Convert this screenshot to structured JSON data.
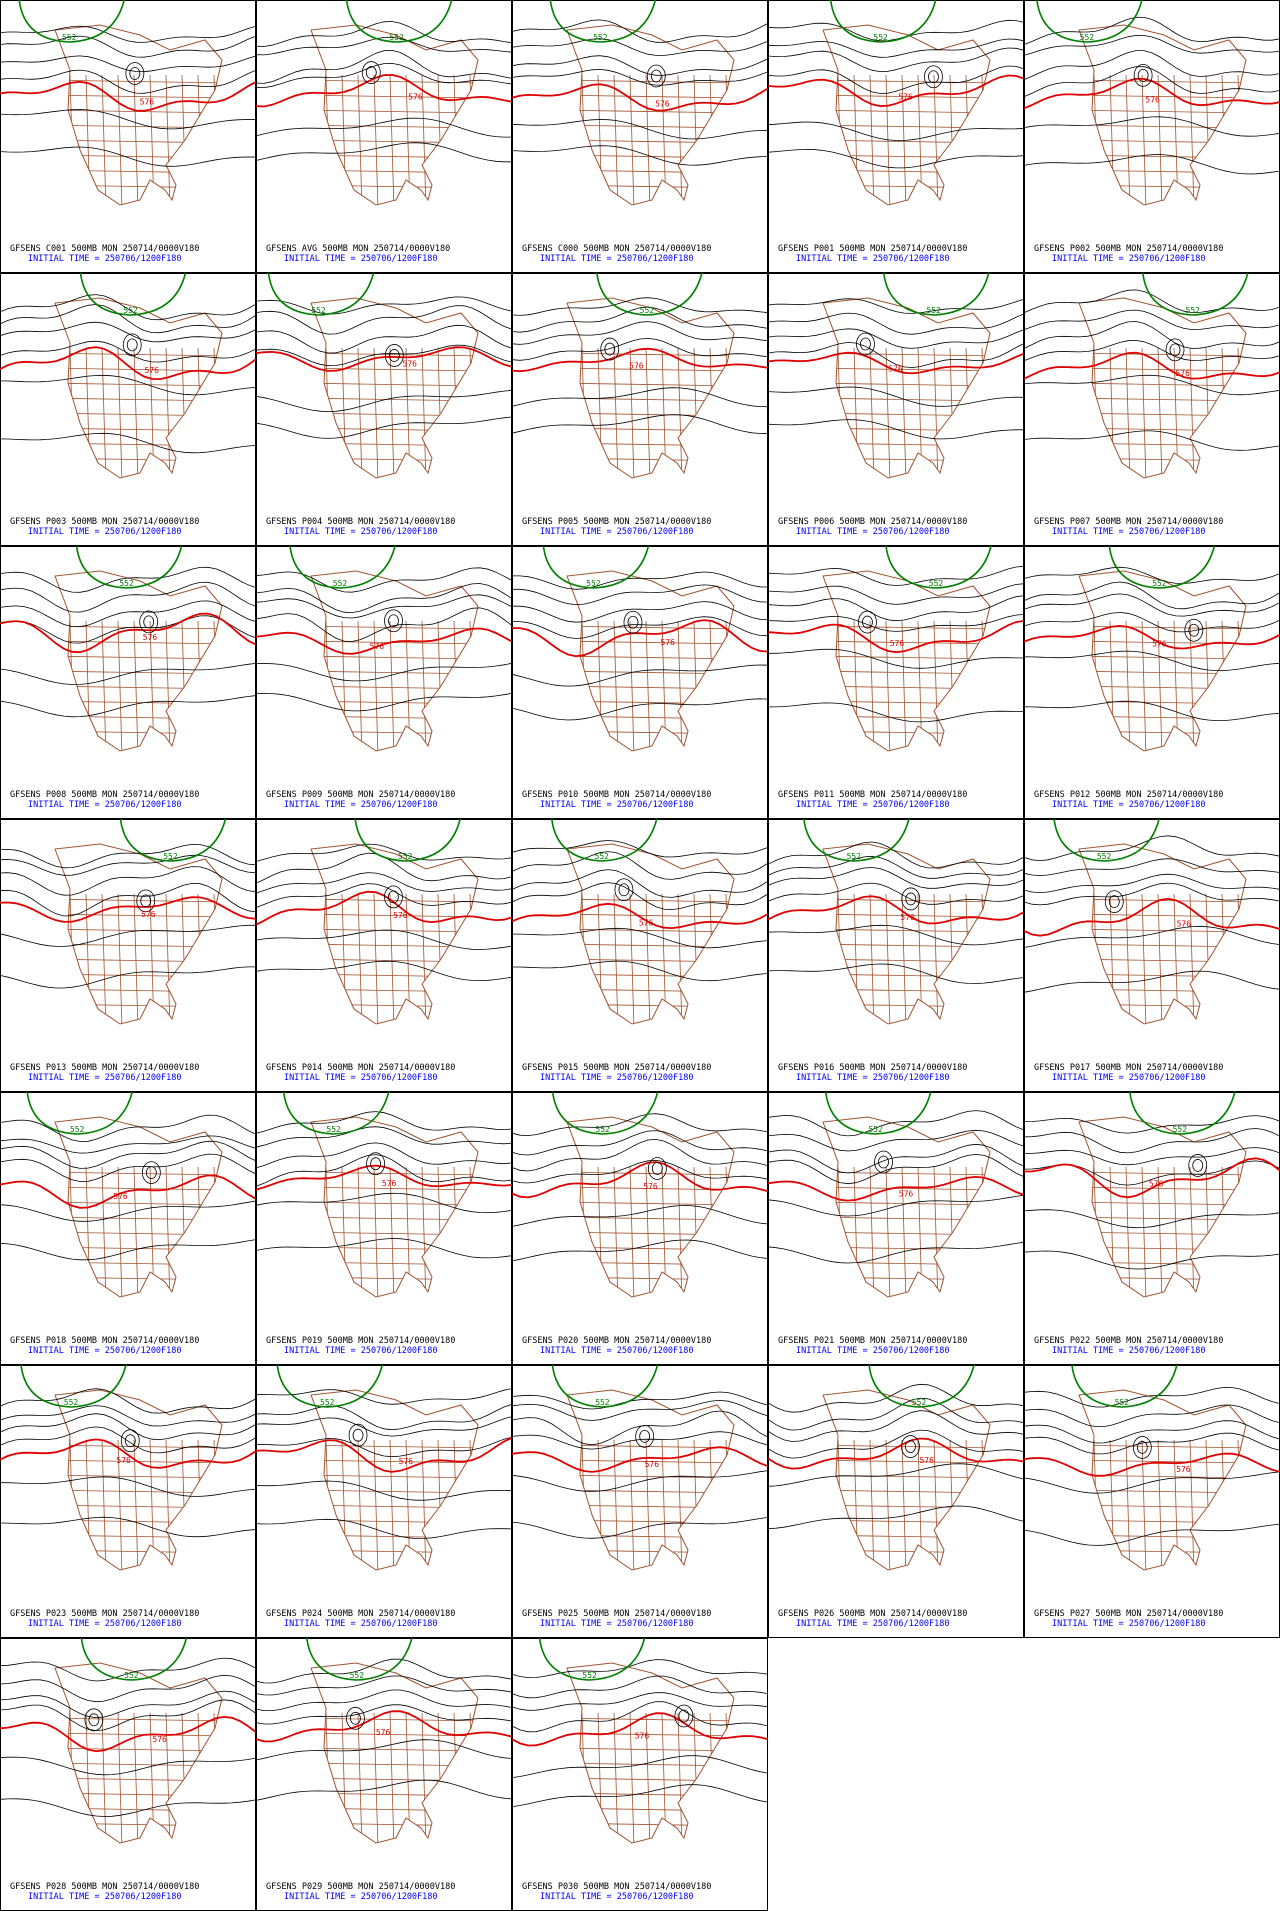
{
  "panels": [
    {
      "line1": "GFSENS C001 500MB MON 250714/0000V180",
      "line2": "INITIAL TIME = 250706/1200F180",
      "labels": [
        "552",
        "576"
      ]
    },
    {
      "line1": "GFSENS AVG 500MB MON 250714/0000V180",
      "line2": "INITIAL TIME = 250706/1200F180",
      "labels": [
        "552",
        "576"
      ]
    },
    {
      "line1": "GFSENS C000 500MB MON 250714/0000V180",
      "line2": "INITIAL TIME = 250706/1200F180",
      "labels": [
        "552",
        "576"
      ]
    },
    {
      "line1": "GFSENS P001 500MB MON 250714/0000V180",
      "line2": "INITIAL TIME = 250706/1200F180",
      "labels": [
        "552",
        "576"
      ]
    },
    {
      "line1": "GFSENS P002 500MB MON 250714/0000V180",
      "line2": "INITIAL TIME = 250706/1200F180",
      "labels": [
        "552",
        "576"
      ]
    },
    {
      "line1": "GFSENS P003 500MB MON 250714/0000V180",
      "line2": "INITIAL TIME = 250706/1200F180",
      "labels": [
        "552",
        "576"
      ]
    },
    {
      "line1": "GFSENS P004 500MB MON 250714/0000V180",
      "line2": "INITIAL TIME = 250706/1200F180",
      "labels": [
        "552",
        "576"
      ]
    },
    {
      "line1": "GFSENS P005 500MB MON 250714/0000V180",
      "line2": "INITIAL TIME = 250706/1200F180",
      "labels": [
        "552",
        "576"
      ]
    },
    {
      "line1": "GFSENS P006 500MB MON 250714/0000V180",
      "line2": "INITIAL TIME = 250706/1200F180",
      "labels": [
        "552",
        "576"
      ]
    },
    {
      "line1": "GFSENS P007 500MB MON 250714/0000V180",
      "line2": "INITIAL TIME = 250706/1200F180",
      "labels": [
        "552",
        "576"
      ]
    },
    {
      "line1": "GFSENS P008 500MB MON 250714/0000V180",
      "line2": "INITIAL TIME = 250706/1200F180",
      "labels": [
        "552",
        "576"
      ]
    },
    {
      "line1": "GFSENS P009 500MB MON 250714/0000V180",
      "line2": "INITIAL TIME = 250706/1200F180",
      "labels": [
        "552",
        "576"
      ]
    },
    {
      "line1": "GFSENS P010 500MB MON 250714/0000V180",
      "line2": "INITIAL TIME = 250706/1200F180",
      "labels": [
        "552",
        "576"
      ]
    },
    {
      "line1": "GFSENS P011 500MB MON 250714/0000V180",
      "line2": "INITIAL TIME = 250706/1200F180",
      "labels": [
        "552",
        "576"
      ]
    },
    {
      "line1": "GFSENS P012 500MB MON 250714/0000V180",
      "line2": "INITIAL TIME = 250706/1200F180",
      "labels": [
        "552",
        "576"
      ]
    },
    {
      "line1": "GFSENS P013 500MB MON 250714/0000V180",
      "line2": "INITIAL TIME = 250706/1200F180",
      "labels": [
        "552",
        "576"
      ]
    },
    {
      "line1": "GFSENS P014 500MB MON 250714/0000V180",
      "line2": "INITIAL TIME = 250706/1200F180",
      "labels": [
        "552",
        "576"
      ]
    },
    {
      "line1": "GFSENS P015 500MB MON 250714/0000V180",
      "line2": "INITIAL TIME = 250706/1200F180",
      "labels": [
        "552",
        "576"
      ]
    },
    {
      "line1": "GFSENS P016 500MB MON 250714/0000V180",
      "line2": "INITIAL TIME = 250706/1200F180",
      "labels": [
        "552",
        "576"
      ]
    },
    {
      "line1": "GFSENS P017 500MB MON 250714/0000V180",
      "line2": "INITIAL TIME = 250706/1200F180",
      "labels": [
        "552",
        "576"
      ]
    },
    {
      "line1": "GFSENS P018 500MB MON 250714/0000V180",
      "line2": "INITIAL TIME = 250706/1200F180",
      "labels": [
        "552",
        "576"
      ]
    },
    {
      "line1": "GFSENS P019 500MB MON 250714/0000V180",
      "line2": "INITIAL TIME = 250706/1200F180",
      "labels": [
        "552",
        "576"
      ]
    },
    {
      "line1": "GFSENS P020 500MB MON 250714/0000V180",
      "line2": "INITIAL TIME = 250706/1200F180",
      "labels": [
        "552",
        "576"
      ]
    },
    {
      "line1": "GFSENS P021 500MB MON 250714/0000V180",
      "line2": "INITIAL TIME = 250706/1200F180",
      "labels": [
        "552",
        "576"
      ]
    },
    {
      "line1": "GFSENS P022 500MB MON 250714/0000V180",
      "line2": "INITIAL TIME = 250706/1200F180",
      "labels": [
        "552",
        "576"
      ]
    },
    {
      "line1": "GFSENS P023 500MB MON 250714/0000V180",
      "line2": "INITIAL TIME = 250706/1200F180",
      "labels": [
        "552",
        "576"
      ]
    },
    {
      "line1": "GFSENS P024 500MB MON 250714/0000V180",
      "line2": "INITIAL TIME = 250706/1200F180",
      "labels": [
        "552",
        "576"
      ]
    },
    {
      "line1": "GFSENS P025 500MB MON 250714/0000V180",
      "line2": "INITIAL TIME = 250706/1200F180",
      "labels": [
        "552",
        "576"
      ]
    },
    {
      "line1": "GFSENS P026 500MB MON 250714/0000V180",
      "line2": "INITIAL TIME = 250706/1200F180",
      "labels": [
        "552",
        "576"
      ]
    },
    {
      "line1": "GFSENS P027 500MB MON 250714/0000V180",
      "line2": "INITIAL TIME = 250706/1200F180",
      "labels": [
        "552",
        "576"
      ]
    },
    {
      "line1": "GFSENS P028 500MB MON 250714/0000V180",
      "line2": "INITIAL TIME = 250706/1200F180",
      "labels": [
        "552",
        "576"
      ]
    },
    {
      "line1": "GFSENS P029 500MB MON 250714/0000V180",
      "line2": "INITIAL TIME = 250706/1200F180",
      "labels": [
        "552",
        "576"
      ]
    },
    {
      "line1": "GFSENS P030 500MB MON 250714/0000V180",
      "line2": "INITIAL TIME = 250706/1200F180",
      "labels": [
        "552",
        "576"
      ]
    }
  ]
}
